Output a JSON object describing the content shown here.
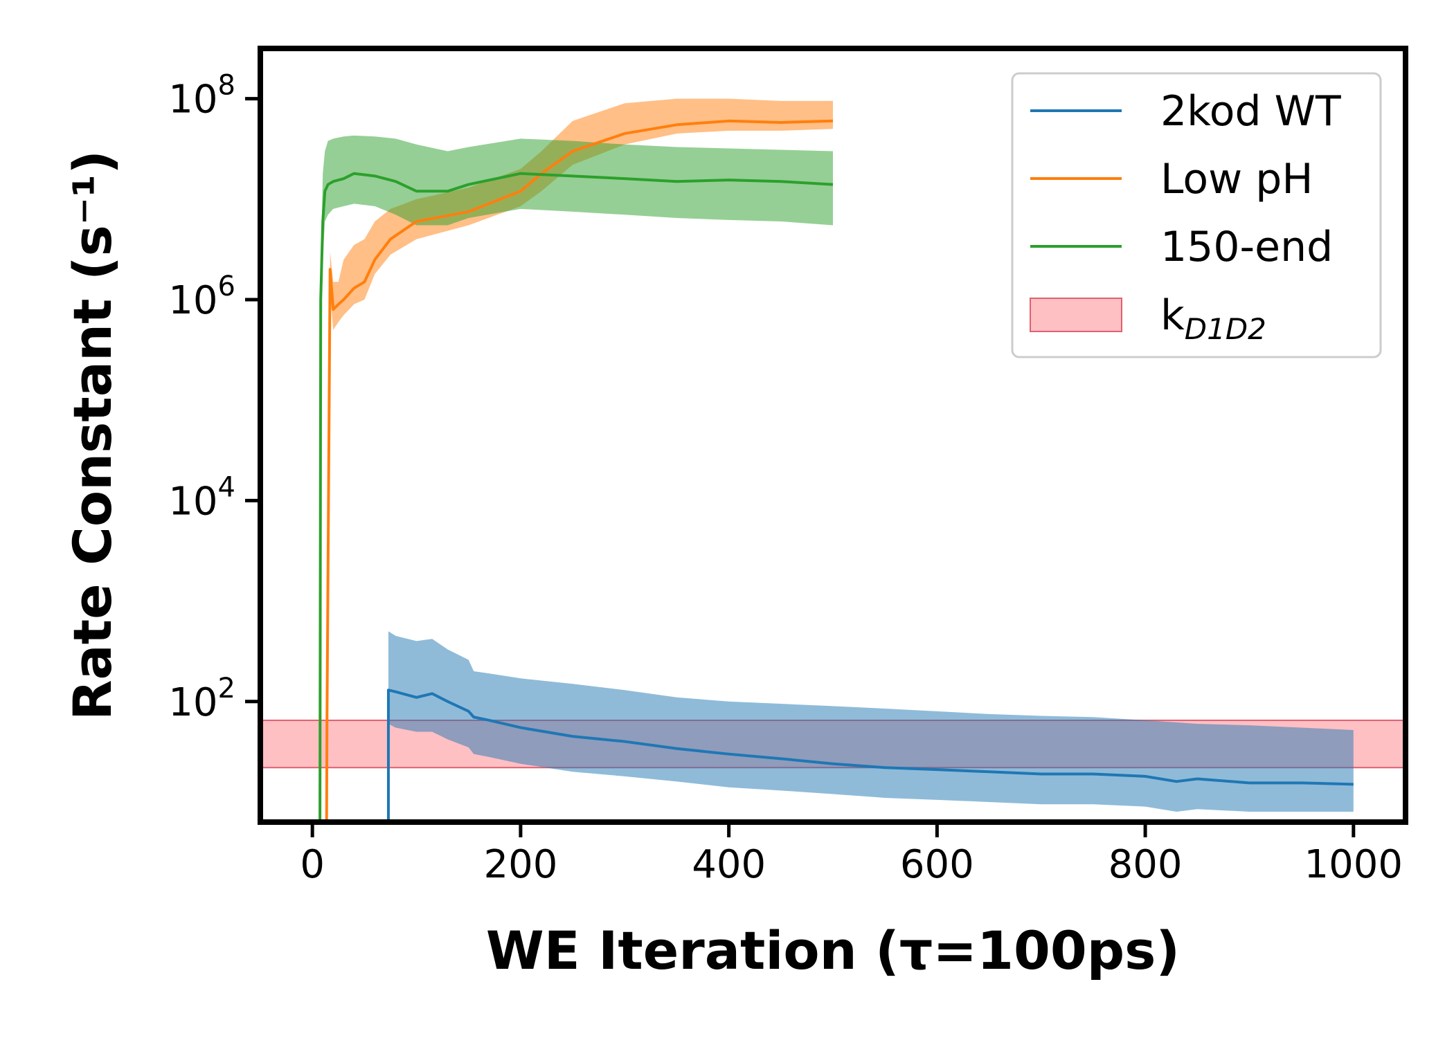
{
  "chart_data": {
    "type": "line",
    "xlabel": "WE Iteration (τ=100ps)",
    "ylabel": "Rate Constant (s⁻¹)",
    "xlim": [
      -50,
      1050
    ],
    "ylim_log10": [
      0.8,
      8.5
    ],
    "yscale": "log",
    "grid": false,
    "legend_position": "top-right",
    "x_ticks": [
      0,
      200,
      400,
      600,
      800,
      1000
    ],
    "x_tick_labels": [
      "0",
      "200",
      "400",
      "600",
      "800",
      "1000"
    ],
    "y_ticks_exponent": [
      2,
      4,
      6,
      8
    ],
    "y_tick_base": "10",
    "series": [
      {
        "name": "2kod WT",
        "color": "#1f77b4",
        "x": [
          73,
          73,
          80,
          100,
          115,
          130,
          150,
          155,
          170,
          200,
          250,
          300,
          350,
          400,
          450,
          500,
          550,
          600,
          650,
          700,
          750,
          800,
          830,
          850,
          900,
          950,
          1000
        ],
        "y": [
          0.1,
          130,
          125,
          110,
          120,
          100,
          80,
          70,
          65,
          55,
          45,
          40,
          34,
          30,
          27,
          24,
          22,
          21,
          20,
          19,
          19,
          18,
          16,
          17,
          15.5,
          15.5,
          15
        ],
        "band_upper": [
          0.1,
          500,
          450,
          400,
          420,
          330,
          260,
          200,
          190,
          170,
          150,
          130,
          110,
          100,
          95,
          90,
          85,
          80,
          75,
          72,
          70,
          65,
          62,
          60,
          58,
          55,
          52
        ],
        "band_lower": [
          0.1,
          60,
          55,
          50,
          50,
          42,
          35,
          30,
          28,
          24,
          20,
          18,
          16,
          14,
          13,
          12,
          11,
          10.5,
          10,
          9.5,
          9.5,
          9,
          8,
          8.5,
          8,
          8,
          8
        ]
      },
      {
        "name": "Low pH",
        "color": "#ff7f0e",
        "x": [
          13,
          14,
          17,
          20,
          25,
          30,
          40,
          50,
          60,
          75,
          100,
          150,
          200,
          220,
          250,
          300,
          350,
          400,
          450,
          500
        ],
        "y": [
          0.1,
          60,
          2000000,
          800000,
          900000,
          1000000,
          1300000,
          1500000,
          2500000,
          4000000,
          6000000,
          7500000,
          12000000,
          18000000,
          30000000,
          45000000,
          55000000,
          60000000,
          58000000,
          60000000
        ],
        "band_upper": [
          0.1,
          80,
          3000000,
          1500000,
          1500000,
          2500000,
          3500000,
          4000000,
          6000000,
          8000000,
          10000000,
          13000000,
          20000000,
          30000000,
          60000000,
          90000000,
          100000000,
          100000000,
          95000000,
          95000000
        ],
        "band_lower": [
          0.1,
          40,
          1200000,
          500000,
          600000,
          700000,
          900000,
          1000000,
          1800000,
          2800000,
          4000000,
          5500000,
          8500000,
          12000000,
          22000000,
          35000000,
          45000000,
          48000000,
          48000000,
          50000000
        ]
      },
      {
        "name": "150-end",
        "color": "#2ca02c",
        "x": [
          7,
          8,
          10,
          12,
          15,
          20,
          30,
          40,
          60,
          80,
          100,
          130,
          150,
          200,
          250,
          300,
          350,
          400,
          450,
          500
        ],
        "y": [
          0.1,
          1000000,
          6000000,
          12000000,
          14000000,
          15000000,
          16000000,
          18000000,
          17000000,
          15000000,
          12000000,
          12000000,
          14000000,
          18000000,
          17000000,
          16000000,
          15000000,
          15500000,
          15000000,
          14000000
        ],
        "band_upper": [
          0.1,
          2000000,
          18000000,
          30000000,
          38000000,
          40000000,
          42000000,
          43000000,
          42000000,
          40000000,
          35000000,
          30000000,
          33000000,
          40000000,
          38000000,
          35000000,
          33000000,
          32000000,
          31000000,
          30000000
        ],
        "band_lower": [
          0.1,
          500000,
          2500000,
          6000000,
          7000000,
          8000000,
          8500000,
          9000000,
          8500000,
          7000000,
          5500000,
          5500000,
          6500000,
          8000000,
          7500000,
          7000000,
          6500000,
          6200000,
          6000000,
          5500000
        ]
      }
    ],
    "reference_band": {
      "label": "k",
      "label_subscript": "D1D2",
      "color": "#ff8c94",
      "y_low": 22,
      "y_high": 65
    }
  }
}
